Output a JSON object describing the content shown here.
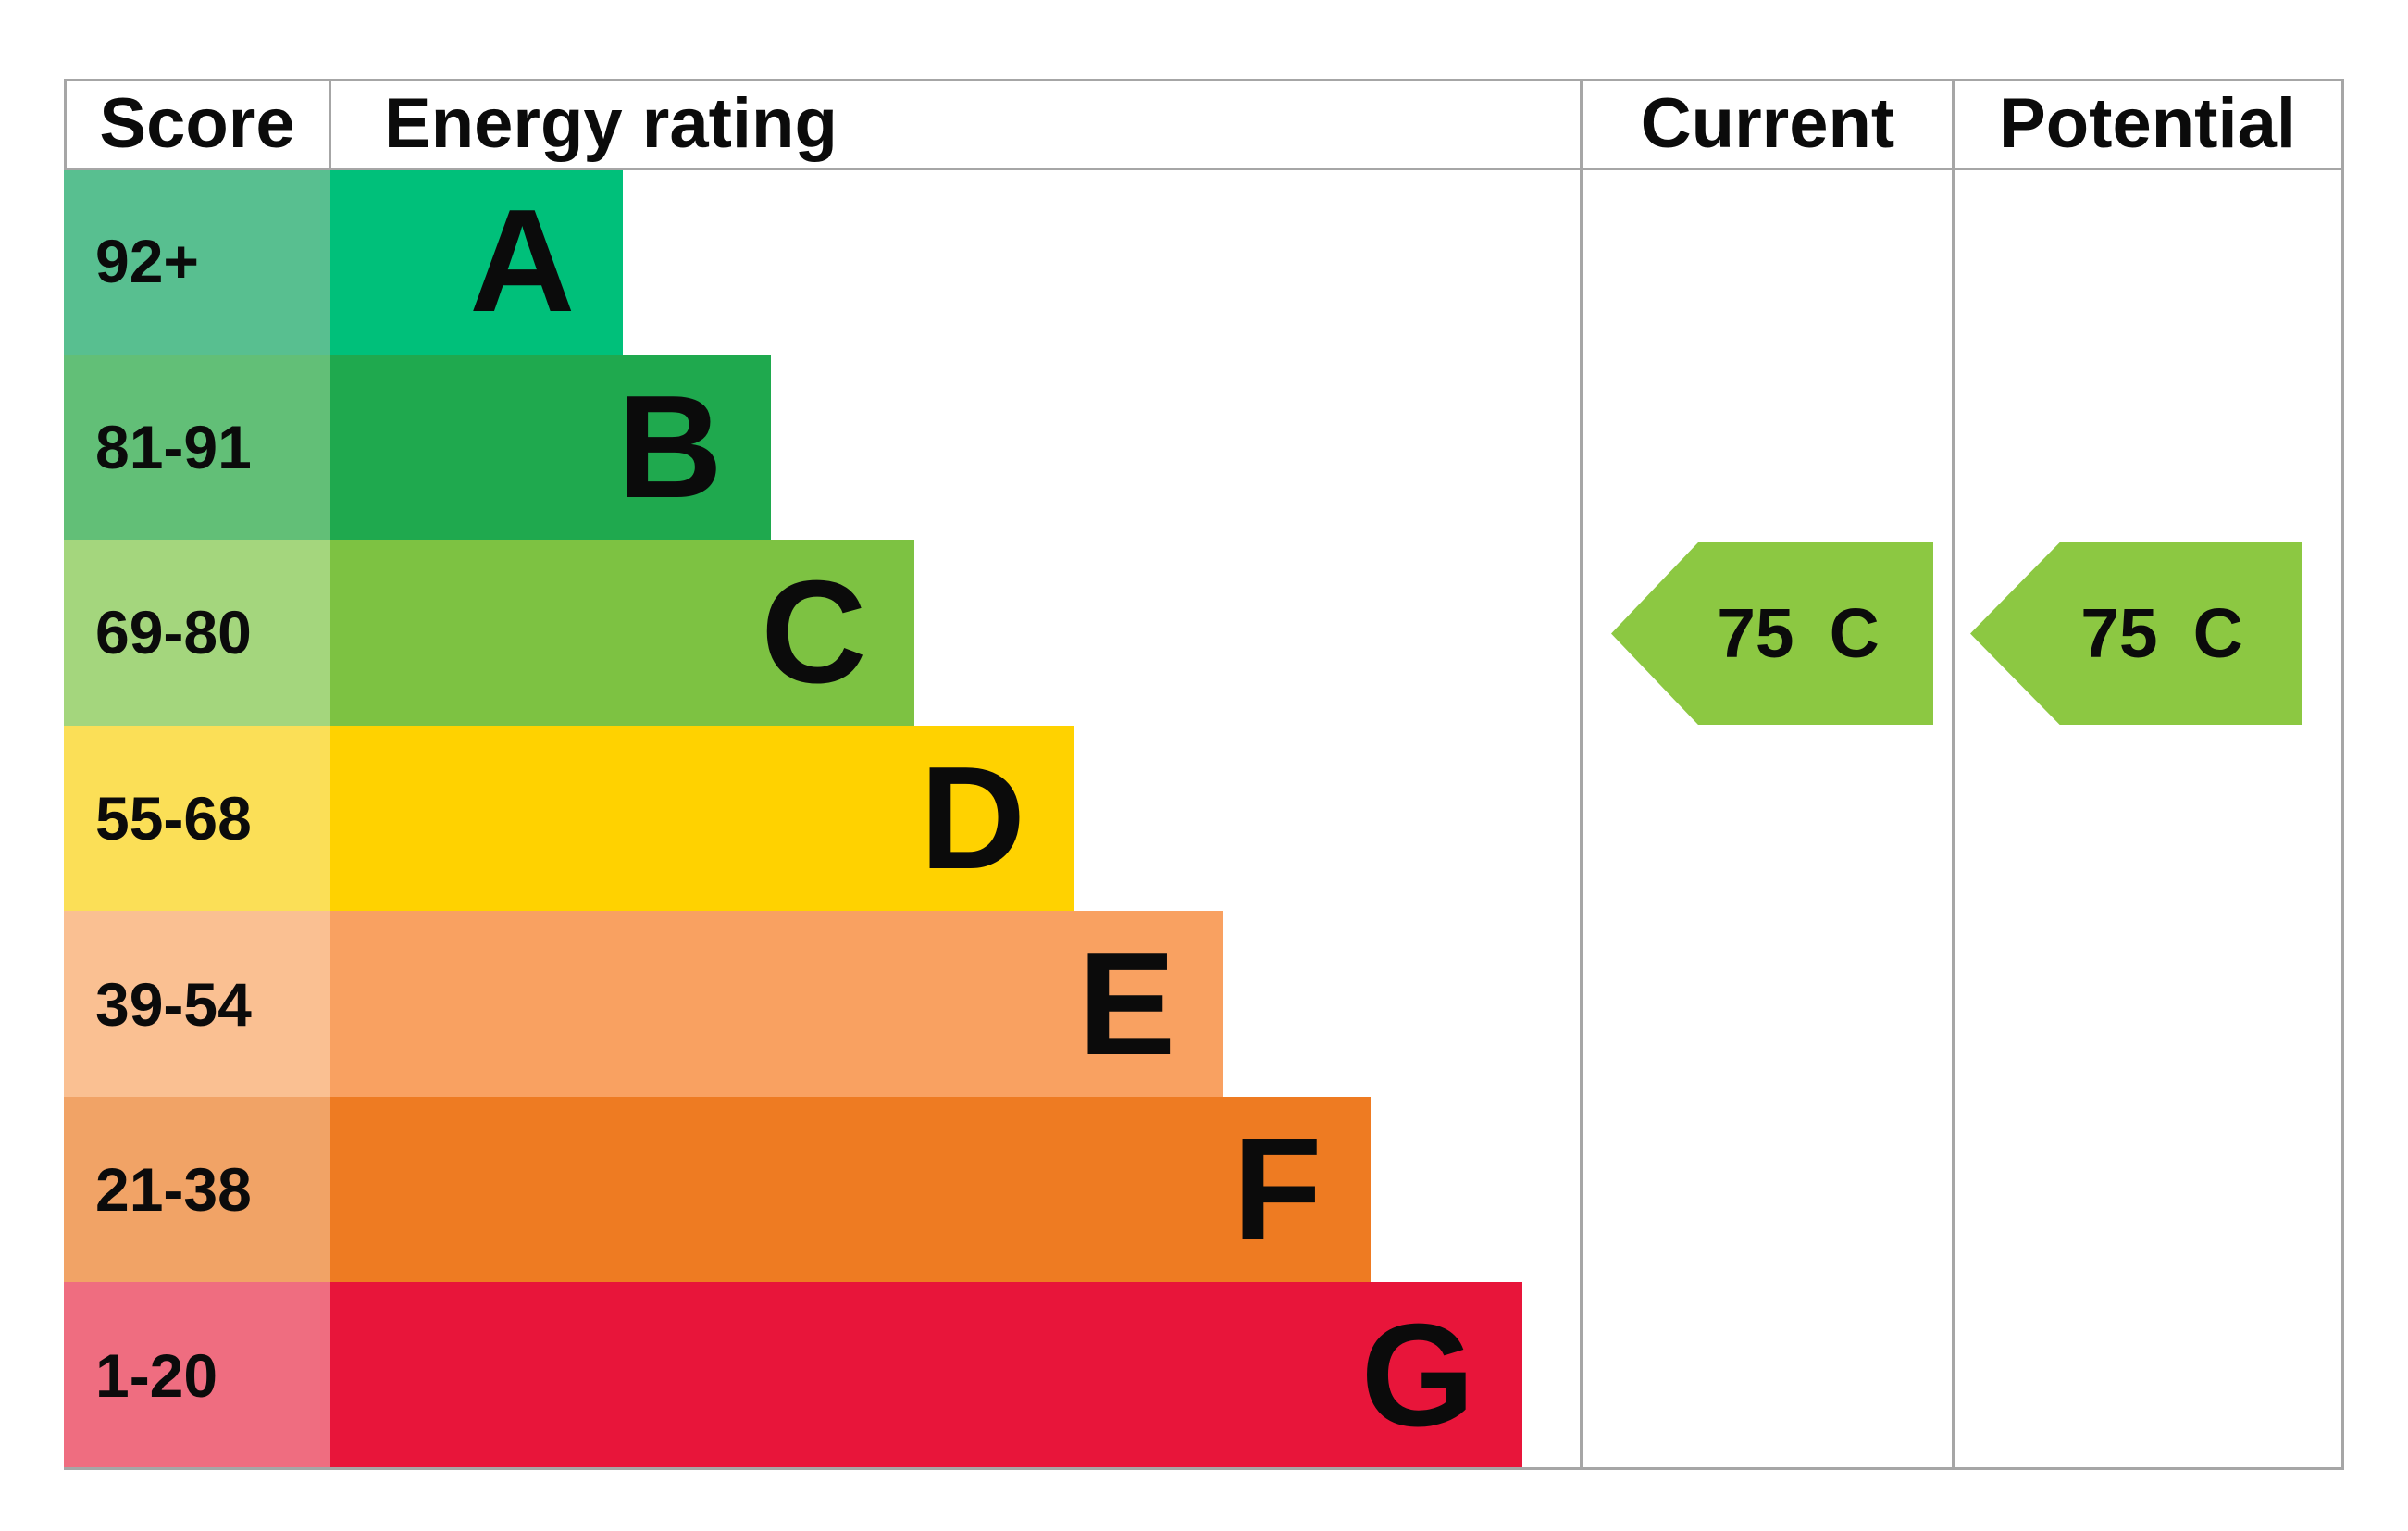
{
  "table": {
    "grid_color": "#a6a6a6",
    "headers": {
      "score": "Score",
      "energy_rating": "Energy rating",
      "current": "Current",
      "potential": "Potential"
    },
    "bands": [
      {
        "letter": "A",
        "score": "92+",
        "bar_color": "#00c07a",
        "score_color": "#58bf90",
        "bar_percent": 23.4
      },
      {
        "letter": "B",
        "score": "81-91",
        "bar_color": "#1fa94e",
        "score_color": "#62bf77",
        "bar_percent": 35.2
      },
      {
        "letter": "C",
        "score": "69-80",
        "bar_color": "#7dc242",
        "score_color": "#a4d67d",
        "bar_percent": 46.7
      },
      {
        "letter": "D",
        "score": "55-68",
        "bar_color": "#ffd200",
        "score_color": "#fbdf57",
        "bar_percent": 59.4
      },
      {
        "letter": "E",
        "score": "39-54",
        "bar_color": "#f9a161",
        "score_color": "#fac092",
        "bar_percent": 71.4
      },
      {
        "letter": "F",
        "score": "21-38",
        "bar_color": "#ee7b22",
        "score_color": "#f1a366",
        "bar_percent": 83.1
      },
      {
        "letter": "G",
        "score": "1-20",
        "bar_color": "#e8153a",
        "score_color": "#ef6d80",
        "bar_percent": 95.3
      }
    ]
  },
  "ratings": {
    "current": {
      "value": "75",
      "band": "C",
      "arrow_color": "#8cc842"
    },
    "potential": {
      "value": "75",
      "band": "C",
      "arrow_color": "#8cc842"
    }
  },
  "chart_data": {
    "type": "bar",
    "title": "EPC energy efficiency rating chart",
    "columns": [
      "Score",
      "Energy rating",
      "Current",
      "Potential"
    ],
    "categories": [
      "A",
      "B",
      "C",
      "D",
      "E",
      "F",
      "G"
    ],
    "score_ranges": [
      "92+",
      "81-91",
      "69-80",
      "55-68",
      "39-54",
      "21-38",
      "1-20"
    ],
    "bar_percent_of_column_width": [
      23.4,
      35.2,
      46.7,
      59.4,
      71.4,
      83.1,
      95.3
    ],
    "band_colors": [
      "#00c07a",
      "#1fa94e",
      "#7dc242",
      "#ffd200",
      "#f9a161",
      "#ee7b22",
      "#e8153a"
    ],
    "score_cell_colors": [
      "#58bf90",
      "#62bf77",
      "#a4d67d",
      "#fbdf57",
      "#fac092",
      "#f1a366",
      "#ef6d80"
    ],
    "current_rating": {
      "value": 75,
      "band": "C"
    },
    "potential_rating": {
      "value": 75,
      "band": "C"
    },
    "legend_position": "none",
    "grid": "table-borders"
  }
}
